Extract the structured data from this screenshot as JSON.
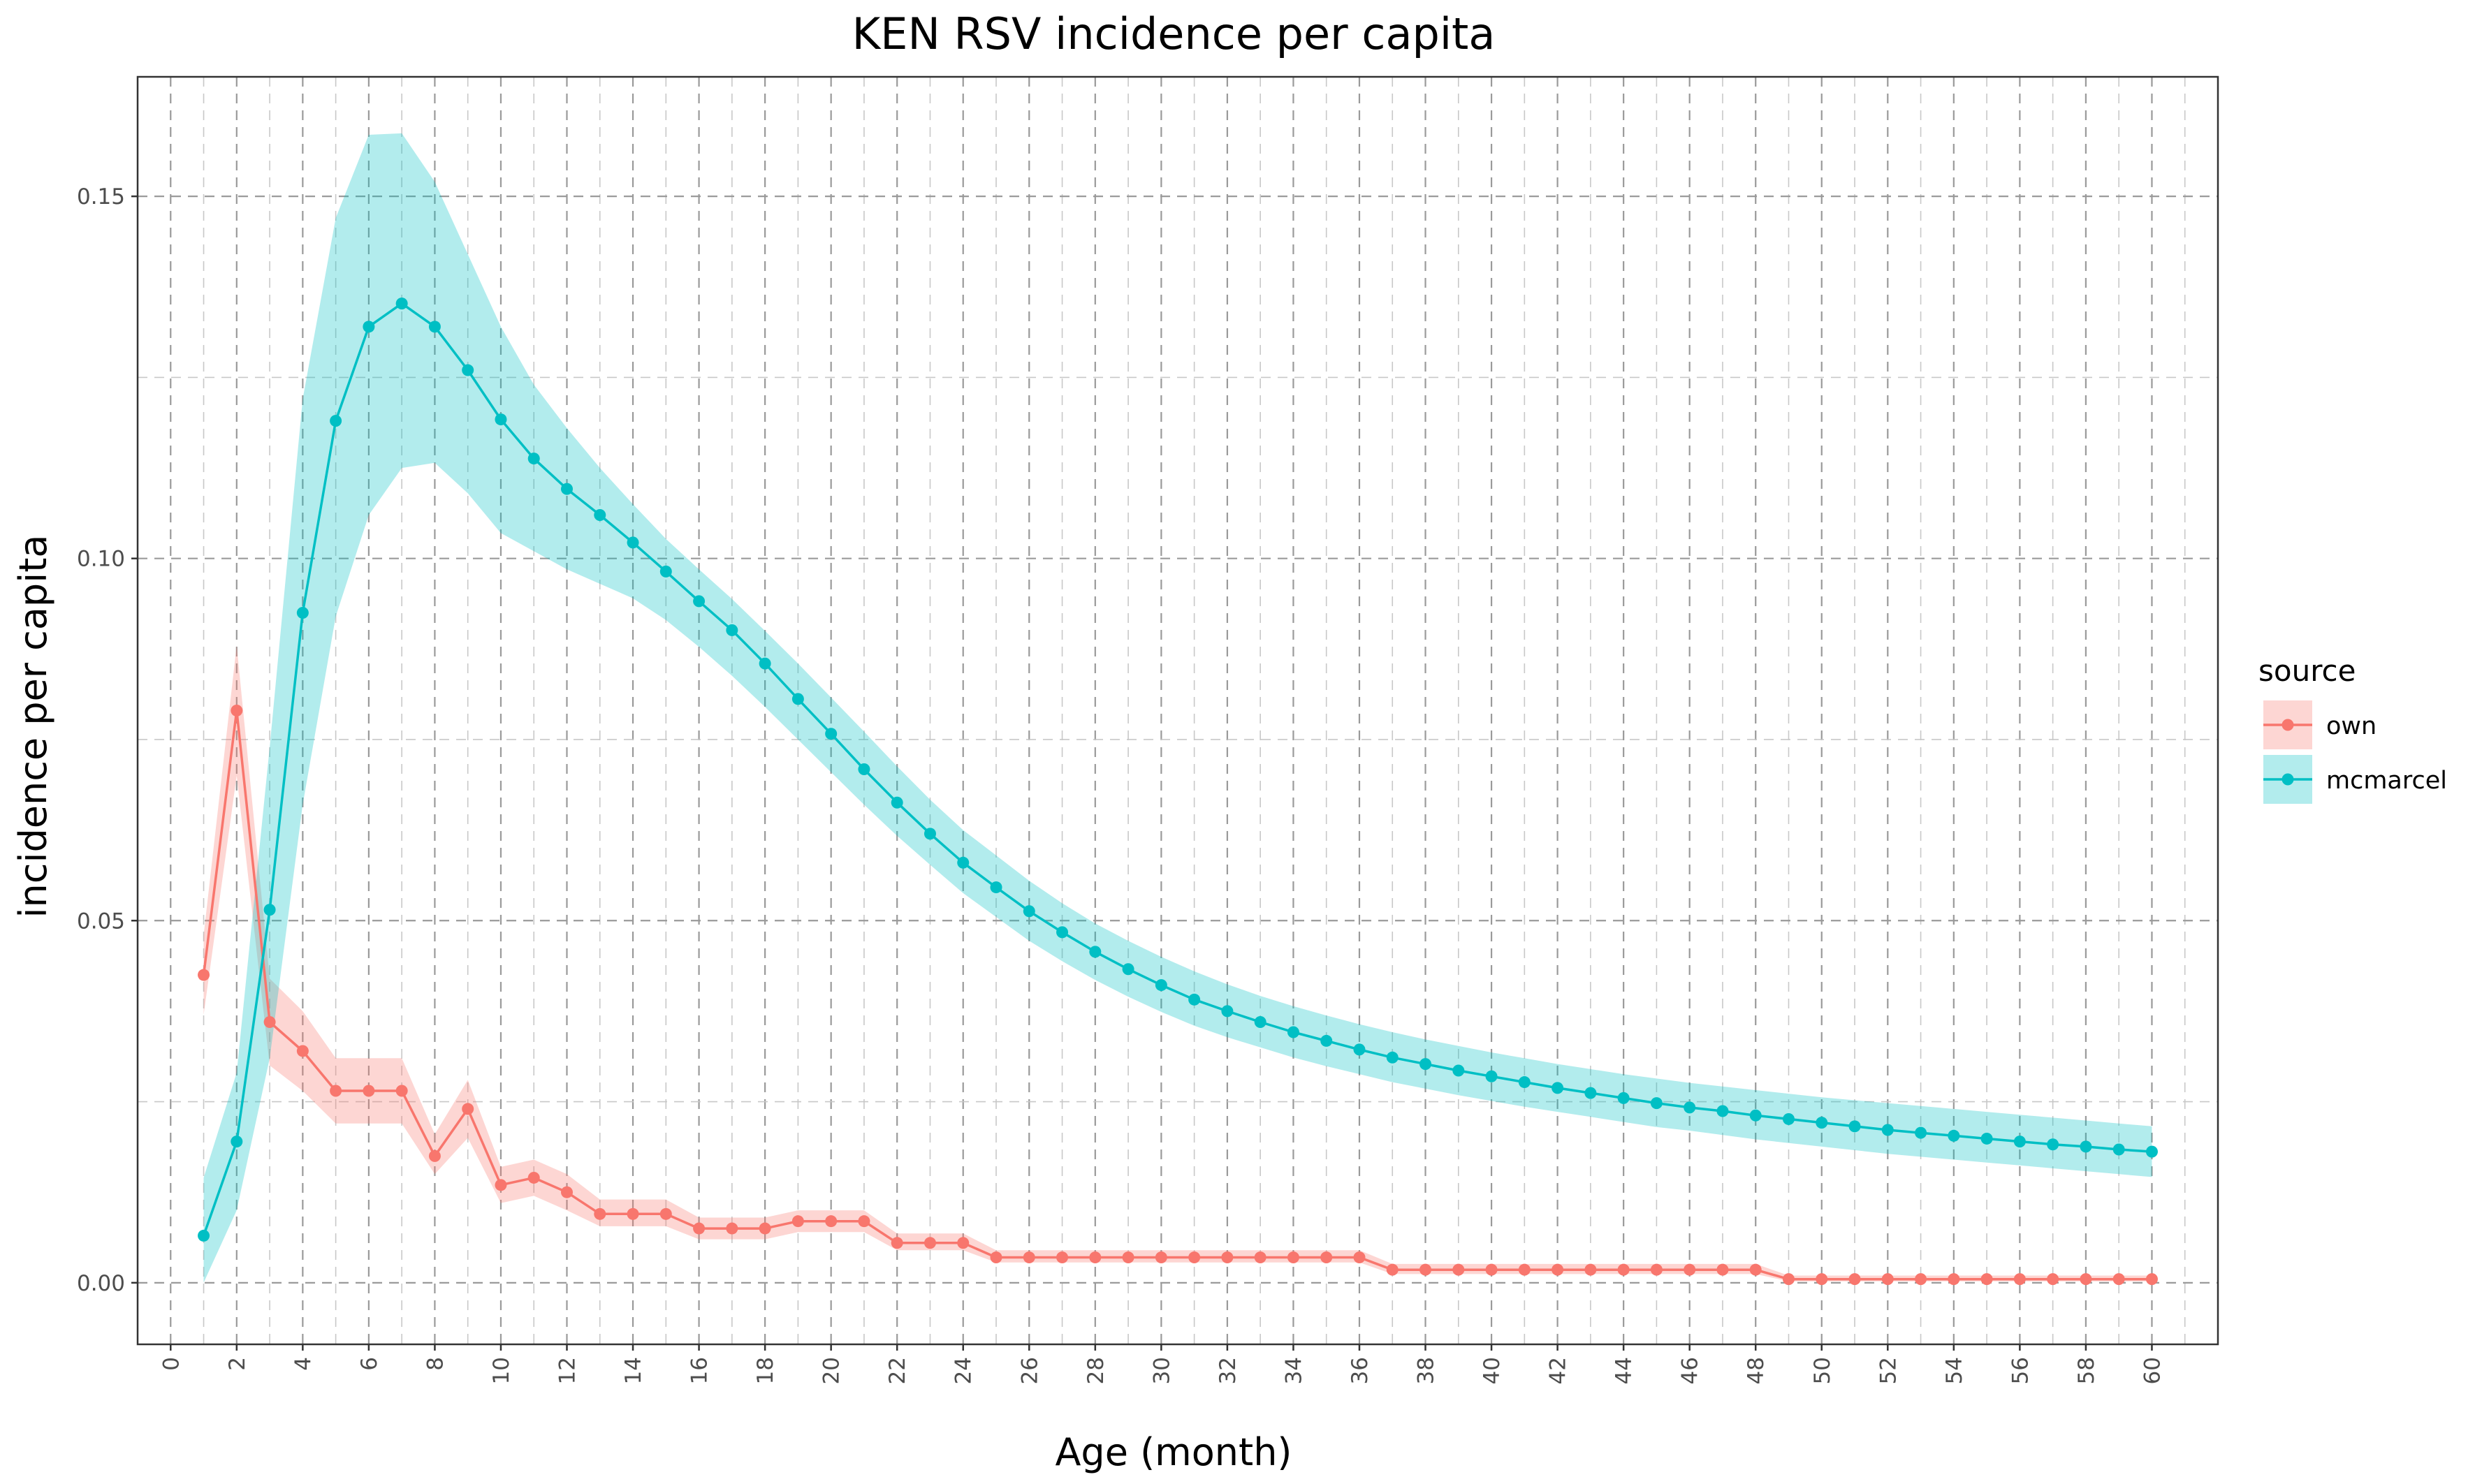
{
  "chart_data": {
    "type": "line",
    "title": "KEN RSV incidence per capita",
    "xlabel": "Age (month)",
    "ylabel": "incidence per capita",
    "xlim": [
      -1,
      62
    ],
    "ylim": [
      -0.0085,
      0.1665
    ],
    "x_ticks": [
      0,
      2,
      4,
      6,
      8,
      10,
      12,
      14,
      16,
      18,
      20,
      22,
      24,
      26,
      28,
      30,
      32,
      34,
      36,
      38,
      40,
      42,
      44,
      46,
      48,
      50,
      52,
      54,
      56,
      58,
      60
    ],
    "x_tick_labels": [
      "0",
      "2",
      "4",
      "6",
      "8",
      "10",
      "12",
      "14",
      "16",
      "18",
      "20",
      "22",
      "24",
      "26",
      "28",
      "30",
      "32",
      "34",
      "36",
      "38",
      "40",
      "42",
      "44",
      "46",
      "48",
      "50",
      "52",
      "54",
      "56",
      "58",
      "60"
    ],
    "y_ticks": [
      0.0,
      0.05,
      0.1,
      0.15
    ],
    "y_tick_labels": [
      "0.00",
      "0.05",
      "0.10",
      "0.15"
    ],
    "grid": true,
    "legend": {
      "title": "source",
      "position": "right"
    },
    "x": [
      1,
      2,
      3,
      4,
      5,
      6,
      7,
      8,
      9,
      10,
      11,
      12,
      13,
      14,
      15,
      16,
      17,
      18,
      19,
      20,
      21,
      22,
      23,
      24,
      25,
      26,
      27,
      28,
      29,
      30,
      31,
      32,
      33,
      34,
      35,
      36,
      37,
      38,
      39,
      40,
      41,
      42,
      43,
      44,
      45,
      46,
      47,
      48,
      49,
      50,
      51,
      52,
      53,
      54,
      55,
      56,
      57,
      58,
      59,
      60
    ],
    "series": [
      {
        "name": "own",
        "color": "#F8766D",
        "fill": "#F8766D",
        "values": [
          0.0425,
          0.079,
          0.036,
          0.032,
          0.0265,
          0.0265,
          0.0265,
          0.0175,
          0.024,
          0.0135,
          0.0145,
          0.0125,
          0.0095,
          0.0095,
          0.0095,
          0.0075,
          0.0075,
          0.0075,
          0.0085,
          0.0085,
          0.0085,
          0.0055,
          0.0055,
          0.0055,
          0.0035,
          0.0035,
          0.0035,
          0.0035,
          0.0035,
          0.0035,
          0.0035,
          0.0035,
          0.0035,
          0.0035,
          0.0035,
          0.0035,
          0.0018,
          0.0018,
          0.0018,
          0.0018,
          0.0018,
          0.0018,
          0.0018,
          0.0018,
          0.0018,
          0.0018,
          0.0018,
          0.0018,
          0.0005,
          0.0005,
          0.0005,
          0.0005,
          0.0005,
          0.0005,
          0.0005,
          0.0005,
          0.0005,
          0.0005,
          0.0005,
          0.0005
        ],
        "lower": [
          0.037,
          0.07,
          0.03,
          0.0265,
          0.022,
          0.022,
          0.022,
          0.015,
          0.02,
          0.011,
          0.012,
          0.01,
          0.0078,
          0.0078,
          0.0078,
          0.006,
          0.006,
          0.006,
          0.007,
          0.007,
          0.007,
          0.0045,
          0.0045,
          0.0045,
          0.0028,
          0.0028,
          0.0028,
          0.0028,
          0.0028,
          0.0028,
          0.0028,
          0.0028,
          0.0028,
          0.0028,
          0.0028,
          0.0028,
          0.0012,
          0.0012,
          0.0012,
          0.0012,
          0.0012,
          0.0012,
          0.0012,
          0.0012,
          0.0012,
          0.0012,
          0.0012,
          0.0012,
          0.0002,
          0.0002,
          0.0002,
          0.0002,
          0.0002,
          0.0002,
          0.0002,
          0.0002,
          0.0002,
          0.0002,
          0.0002,
          0.0002
        ],
        "upper": [
          0.048,
          0.088,
          0.042,
          0.0375,
          0.031,
          0.031,
          0.031,
          0.0205,
          0.028,
          0.016,
          0.017,
          0.015,
          0.0115,
          0.0115,
          0.0115,
          0.009,
          0.009,
          0.009,
          0.01,
          0.01,
          0.01,
          0.0068,
          0.0068,
          0.0068,
          0.0045,
          0.0045,
          0.0045,
          0.0045,
          0.0045,
          0.0045,
          0.0045,
          0.0045,
          0.0045,
          0.0045,
          0.0045,
          0.0045,
          0.0026,
          0.0026,
          0.0026,
          0.0026,
          0.0026,
          0.0026,
          0.0026,
          0.0026,
          0.0026,
          0.0026,
          0.0026,
          0.0026,
          0.001,
          0.001,
          0.001,
          0.001,
          0.001,
          0.001,
          0.001,
          0.001,
          0.001,
          0.001,
          0.001,
          0.001
        ]
      },
      {
        "name": "mcmarcel",
        "color": "#00BFC4",
        "fill": "#00BFC4",
        "values": [
          0.0065,
          0.0195,
          0.0515,
          0.0925,
          0.119,
          0.132,
          0.1352,
          0.132,
          0.126,
          0.1192,
          0.1138,
          0.1096,
          0.106,
          0.1022,
          0.0982,
          0.0941,
          0.0901,
          0.0855,
          0.0806,
          0.0758,
          0.0709,
          0.0663,
          0.062,
          0.058,
          0.0546,
          0.0513,
          0.0484,
          0.0457,
          0.0433,
          0.0411,
          0.0391,
          0.0375,
          0.036,
          0.0346,
          0.0334,
          0.0322,
          0.0311,
          0.0302,
          0.0293,
          0.0285,
          0.0277,
          0.0269,
          0.0262,
          0.0255,
          0.0248,
          0.0242,
          0.0237,
          0.0231,
          0.0226,
          0.0221,
          0.0216,
          0.0211,
          0.0207,
          0.0203,
          0.0199,
          0.0195,
          0.0191,
          0.0188,
          0.0184,
          0.0181
        ],
        "lower": [
          0.0,
          0.01,
          0.031,
          0.066,
          0.092,
          0.106,
          0.1125,
          0.1132,
          0.109,
          0.1035,
          0.101,
          0.0985,
          0.0965,
          0.0945,
          0.0915,
          0.0878,
          0.0838,
          0.0795,
          0.075,
          0.0705,
          0.066,
          0.0617,
          0.0577,
          0.0538,
          0.0505,
          0.0472,
          0.0444,
          0.0418,
          0.0395,
          0.0374,
          0.0355,
          0.0339,
          0.0325,
          0.0311,
          0.0299,
          0.0288,
          0.0277,
          0.0268,
          0.0259,
          0.0251,
          0.0243,
          0.0236,
          0.0229,
          0.0222,
          0.0215,
          0.021,
          0.0204,
          0.0198,
          0.0193,
          0.0188,
          0.0183,
          0.0178,
          0.0174,
          0.017,
          0.0166,
          0.0162,
          0.0158,
          0.0154,
          0.015,
          0.0146
        ],
        "upper": [
          0.0145,
          0.029,
          0.074,
          0.122,
          0.147,
          0.1585,
          0.1587,
          0.152,
          0.142,
          0.132,
          0.124,
          0.118,
          0.1125,
          0.1075,
          0.1027,
          0.0985,
          0.0944,
          0.09,
          0.0855,
          0.0808,
          0.0761,
          0.0713,
          0.0667,
          0.0625,
          0.059,
          0.0555,
          0.0524,
          0.0496,
          0.0472,
          0.045,
          0.043,
          0.0412,
          0.0396,
          0.0382,
          0.0369,
          0.0357,
          0.0346,
          0.0336,
          0.0327,
          0.0318,
          0.031,
          0.0302,
          0.0295,
          0.0288,
          0.0282,
          0.0276,
          0.0271,
          0.0266,
          0.0261,
          0.0256,
          0.0252,
          0.0248,
          0.0244,
          0.024,
          0.0236,
          0.0232,
          0.0228,
          0.0224,
          0.022,
          0.0216
        ]
      }
    ]
  }
}
